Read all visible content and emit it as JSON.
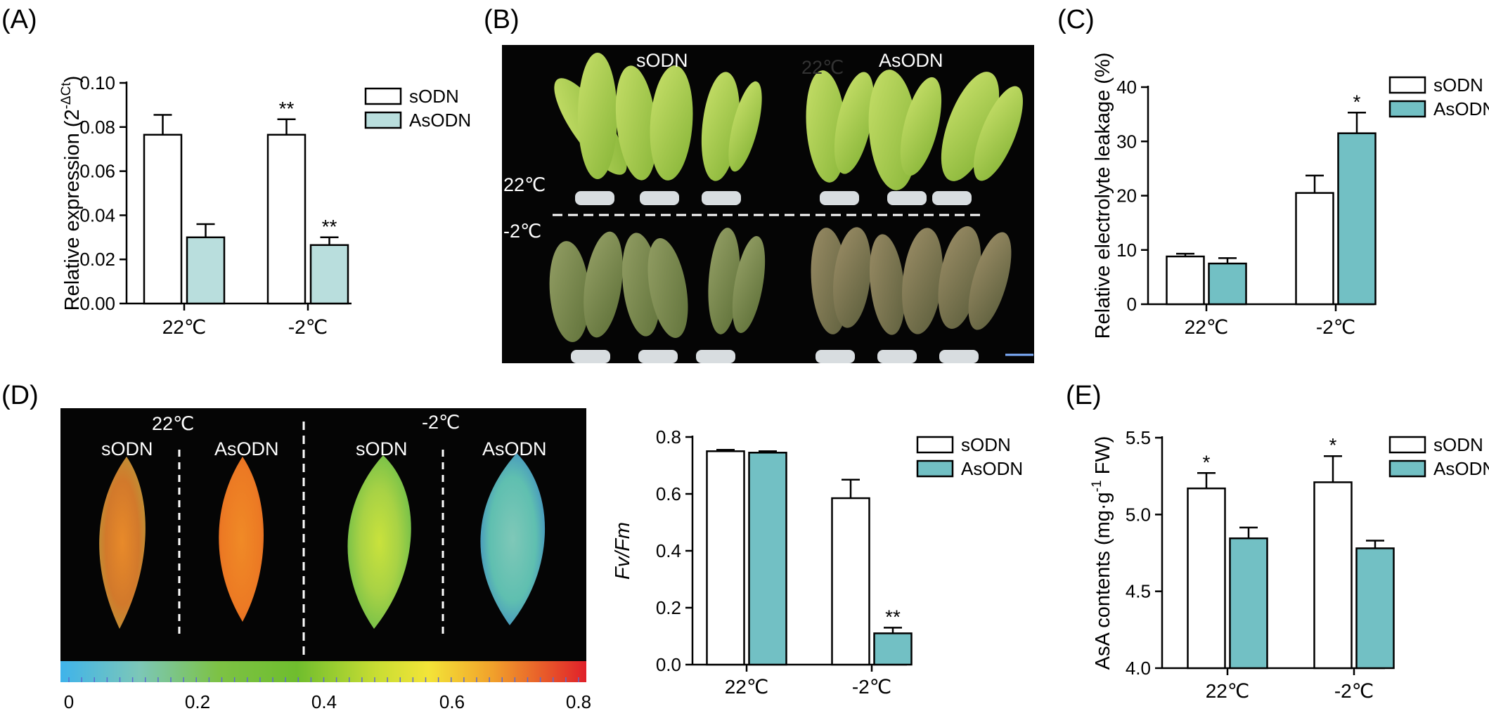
{
  "colors": {
    "sODN": "#ffffff",
    "AsODN_A": "#b9dedd",
    "AsODN": "#72c0c4",
    "axis": "#000000",
    "photo_bg": "#050505"
  },
  "panel_labels": [
    "(A)",
    "(B)",
    "(C)",
    "(D)",
    "(E)"
  ],
  "photo_B": {
    "top_labels": [
      "sODN",
      "AsODN"
    ],
    "overlay_label": "22℃",
    "row_labels": [
      "22℃",
      "-2℃"
    ]
  },
  "photo_D": {
    "temp_labels": [
      "22℃",
      "-2℃"
    ],
    "leaf_labels": [
      "sODN",
      "AsODN",
      "sODN",
      "AsODN"
    ],
    "colorbar_ticks": [
      "0",
      "0.2",
      "0.4",
      "0.6",
      "0.8"
    ]
  },
  "chart_data": [
    {
      "panel": "A",
      "type": "bar",
      "categories": [
        "22℃",
        "-2℃"
      ],
      "series": [
        {
          "name": "sODN",
          "values": [
            0.0765,
            0.0765
          ],
          "errors": [
            0.009,
            0.007
          ]
        },
        {
          "name": "AsODN",
          "values": [
            0.03,
            0.0265
          ],
          "errors": [
            0.006,
            0.0035
          ]
        }
      ],
      "significance": [
        [
          "",
          "**"
        ],
        [
          "",
          "**"
        ]
      ],
      "ylabel_main": "Relative expression (2",
      "ylabel_sup": "-ΔCt",
      "ylabel_end": ")",
      "ylim": [
        0,
        0.1
      ],
      "yticks": [
        "0.00",
        "0.02",
        "0.04",
        "0.06",
        "0.08",
        "0.10"
      ],
      "legend": "top-right"
    },
    {
      "panel": "C",
      "type": "bar",
      "categories": [
        "22℃",
        "-2℃"
      ],
      "series": [
        {
          "name": "sODN",
          "values": [
            8.8,
            20.5
          ],
          "errors": [
            0.5,
            3.2
          ]
        },
        {
          "name": "AsODN",
          "values": [
            7.5,
            31.5
          ],
          "errors": [
            1.0,
            3.8
          ]
        }
      ],
      "significance": [
        [
          "",
          ""
        ],
        [
          "",
          "*"
        ]
      ],
      "ylabel": "Relative electrolyte leakage (%)",
      "ylim": [
        0,
        40
      ],
      "yticks": [
        "0",
        "10",
        "20",
        "30",
        "40"
      ],
      "legend": "top-right"
    },
    {
      "panel": "D",
      "type": "bar",
      "categories": [
        "22℃",
        "-2℃"
      ],
      "series": [
        {
          "name": "sODN",
          "values": [
            0.75,
            0.585
          ],
          "errors": [
            0.005,
            0.065
          ]
        },
        {
          "name": "AsODN",
          "values": [
            0.745,
            0.11
          ],
          "errors": [
            0.005,
            0.02
          ]
        }
      ],
      "significance": [
        [
          "",
          ""
        ],
        [
          "",
          "**"
        ]
      ],
      "ylabel": "Fv/Fm",
      "ylim": [
        0,
        0.8
      ],
      "yticks": [
        "0.0",
        "0.2",
        "0.4",
        "0.6",
        "0.8"
      ],
      "legend": "top-right"
    },
    {
      "panel": "E",
      "type": "bar",
      "categories": [
        "22℃",
        "-2℃"
      ],
      "series": [
        {
          "name": "sODN",
          "values": [
            5.17,
            5.21
          ],
          "errors": [
            0.1,
            0.17
          ]
        },
        {
          "name": "AsODN",
          "values": [
            4.845,
            4.78
          ],
          "errors": [
            0.07,
            0.05
          ]
        }
      ],
      "significance": [
        [
          "*",
          "*"
        ],
        [
          "",
          ""
        ]
      ],
      "ylabel_main": "AsA contents (mg·g",
      "ylabel_sup": "-1",
      "ylabel_end": " FW)",
      "ylim": [
        4.0,
        5.5
      ],
      "yticks": [
        "4.0",
        "4.5",
        "5.0",
        "5.5"
      ],
      "legend": "top-right"
    }
  ]
}
